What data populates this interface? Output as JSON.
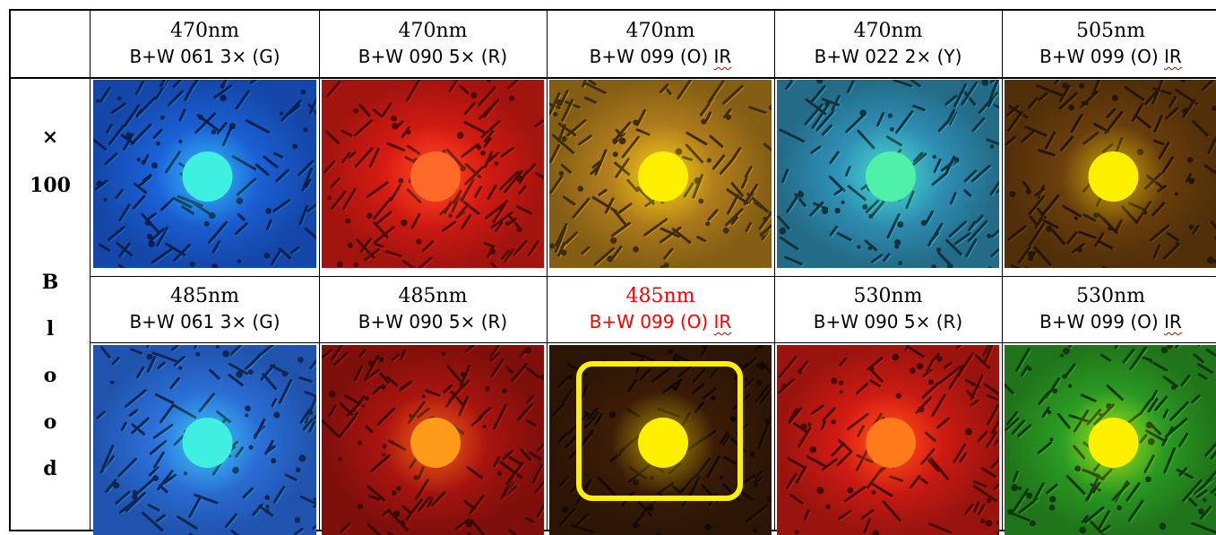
{
  "side_label": [
    "×",
    "100",
    "B",
    "l",
    "o",
    "o",
    "d"
  ],
  "rows": [
    {
      "cells": [
        {
          "wavelength": "470nm",
          "filter_prefix": "B+W 061 3× (G)",
          "filter_ir": "",
          "highlighted_text": false,
          "photo_tint": "#1a5fe0",
          "dot_color": "#3ff0e0",
          "boxed": false
        },
        {
          "wavelength": "470nm",
          "filter_prefix": "B+W 090 5× (R)",
          "filter_ir": "",
          "highlighted_text": false,
          "photo_tint": "#d81a12",
          "dot_color": "#ff6a2a",
          "boxed": false
        },
        {
          "wavelength": "470nm",
          "filter_prefix": "B+W 099 (O) ",
          "filter_ir": "IR",
          "highlighted_text": false,
          "photo_tint": "#b07d1c",
          "dot_color": "#fff000",
          "boxed": false
        },
        {
          "wavelength": "470nm",
          "filter_prefix": "B+W 022 2× (Y)",
          "filter_ir": "",
          "highlighted_text": false,
          "photo_tint": "#2e8fb4",
          "dot_color": "#4ff0a8",
          "boxed": false
        },
        {
          "wavelength": "505nm",
          "filter_prefix": "B+W 099 (O) ",
          "filter_ir": "IR",
          "highlighted_text": false,
          "photo_tint": "#6a3e0c",
          "dot_color": "#fff000",
          "boxed": false
        }
      ]
    },
    {
      "cells": [
        {
          "wavelength": "485nm",
          "filter_prefix": "B+W 061 3× (G)",
          "filter_ir": "",
          "highlighted_text": false,
          "photo_tint": "#2a6ee6",
          "dot_color": "#3ff0e0",
          "boxed": false
        },
        {
          "wavelength": "485nm",
          "filter_prefix": "B+W 090 5× (R)",
          "filter_ir": "",
          "highlighted_text": false,
          "photo_tint": "#a8140e",
          "dot_color": "#ff9a1a",
          "boxed": false
        },
        {
          "wavelength": "485nm",
          "filter_prefix": "B+W 099 (O) ",
          "filter_ir": "IR",
          "highlighted_text": true,
          "photo_tint": "#3a1c06",
          "dot_color": "#fff000",
          "boxed": true
        },
        {
          "wavelength": "530nm",
          "filter_prefix": "B+W 090 5× (R)",
          "filter_ir": "",
          "highlighted_text": false,
          "photo_tint": "#cc1a12",
          "dot_color": "#ff7a1a",
          "boxed": false
        },
        {
          "wavelength": "530nm",
          "filter_prefix": "B+W 099 (O) ",
          "filter_ir": "IR",
          "highlighted_text": false,
          "photo_tint": "#2a9a22",
          "dot_color": "#fff000",
          "boxed": false
        }
      ]
    }
  ]
}
